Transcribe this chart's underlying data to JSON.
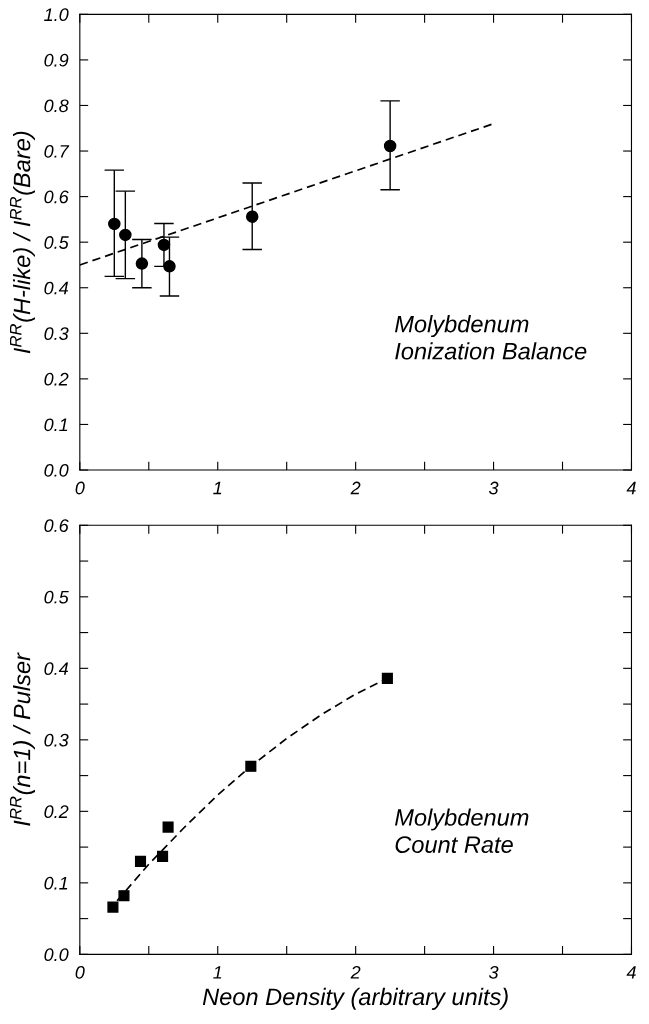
{
  "chart_data": [
    {
      "type": "scatter",
      "ylabel": "I$^{RR}$(H-like) / I$^{RR}$(Bare)",
      "annotations": [
        "Molybdenum\nIonization Balance"
      ],
      "xlim": [
        0,
        4
      ],
      "xticks": [
        0,
        {
          "value": 0.5,
          "label": null
        },
        1,
        {
          "value": 1.5,
          "label": null
        },
        2,
        {
          "value": 2.5,
          "label": null
        },
        3,
        {
          "value": 3.5,
          "label": null
        },
        4
      ],
      "ylim": [
        0,
        1.0
      ],
      "yticks": [
        {
          "value": 0,
          "label": "0.0"
        },
        0.1,
        0.2,
        0.3,
        0.4,
        0.5,
        0.6,
        0.7,
        0.8,
        0.9,
        {
          "value": 1,
          "label": "1.0"
        }
      ],
      "series": [
        {
          "color": "#000000",
          "marker": "circle",
          "x": [
            0.25,
            0.33,
            0.45,
            0.61,
            0.65,
            1.25,
            2.25
          ],
          "values": [
            0.54,
            0.516,
            0.453,
            0.494,
            0.447,
            0.556,
            0.711
          ],
          "errors": [
            [
              0.425,
              0.658
            ],
            [
              0.42,
              0.612
            ],
            [
              0.4,
              0.506
            ],
            [
              0.447,
              0.541
            ],
            [
              0.382,
              0.511
            ],
            [
              0.484,
              0.63
            ],
            [
              0.615,
              0.81
            ]
          ]
        },
        {
          "type": "line",
          "color": "#000000",
          "line_style": "dashed",
          "x": [
            0,
            3
          ],
          "values": [
            0.45,
            0.76
          ]
        }
      ]
    },
    {
      "type": "scatter",
      "xlabel": "Neon Density (arbitrary units)",
      "ylabel": "I$^{RR}$(n=1) / Pulser",
      "annotations": [
        "Molybdenum\nCount Rate"
      ],
      "xlim": [
        0,
        4
      ],
      "xticks": [
        0,
        {
          "value": 0.5,
          "label": null
        },
        1,
        {
          "value": 1.5,
          "label": null
        },
        2,
        {
          "value": 2.5,
          "label": null
        },
        3,
        {
          "value": 3.5,
          "label": null
        },
        4
      ],
      "ylim": [
        0,
        0.6
      ],
      "yticks": [
        {
          "value": 0,
          "label": "0.0"
        },
        {
          "value": 0.05,
          "label": null
        },
        0.1,
        {
          "value": 0.15,
          "label": null
        },
        0.2,
        {
          "value": 0.25,
          "label": null
        },
        0.3,
        {
          "value": 0.35,
          "label": null
        },
        0.4,
        {
          "value": 0.45,
          "label": null
        },
        0.5,
        {
          "value": 0.55,
          "label": null
        },
        0.6
      ],
      "series": [
        {
          "color": "#000000",
          "marker": "square",
          "x": [
            0.24,
            0.32,
            0.44,
            0.6,
            0.64,
            1.24,
            2.23
          ],
          "values": [
            0.066,
            0.082,
            0.13,
            0.137,
            0.178,
            0.263,
            0.386
          ]
        },
        {
          "type": "line",
          "color": "#000000",
          "line_style": "dashed",
          "x": [
            0.27,
            0.5,
            0.75,
            1.0,
            1.24,
            1.5,
            1.75,
            2.0,
            2.23
          ],
          "values": [
            0.075,
            0.126,
            0.176,
            0.223,
            0.263,
            0.302,
            0.335,
            0.364,
            0.386
          ]
        }
      ]
    }
  ]
}
